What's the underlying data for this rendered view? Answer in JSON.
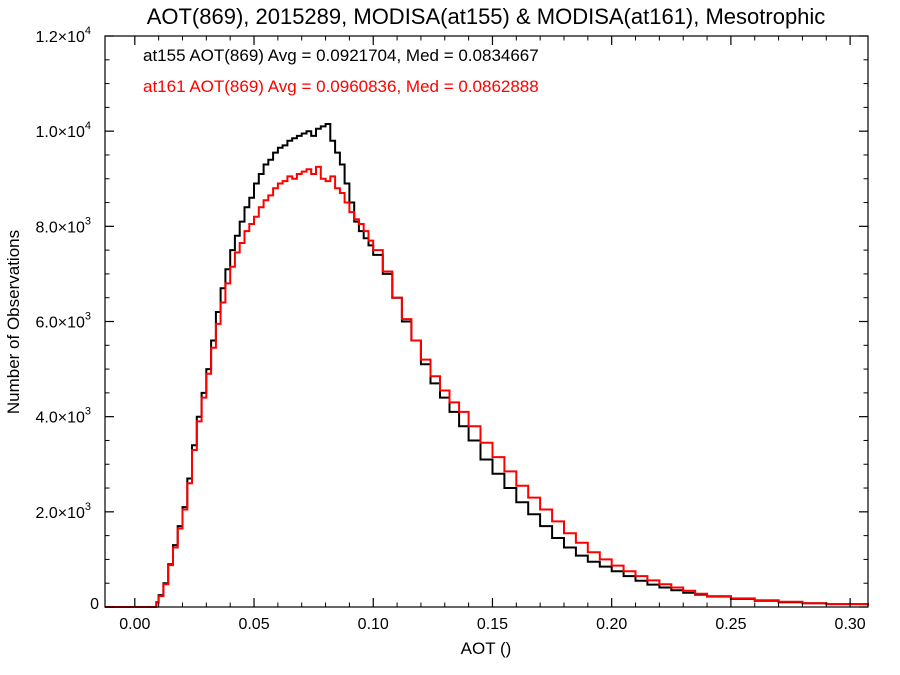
{
  "chart_data": {
    "type": "line",
    "style": "step-histogram",
    "title": "AOT(869), 2015289, MODISA(at155) & MODISA(at161), Mesotrophic",
    "xlabel": "AOT ()",
    "ylabel": "Number of Observations",
    "xlim": [
      -0.0125,
      0.3075
    ],
    "ylim": [
      0,
      12000
    ],
    "x_ticks": [
      {
        "value": 0.0,
        "label": "0.00"
      },
      {
        "value": 0.05,
        "label": "0.05"
      },
      {
        "value": 0.1,
        "label": "0.10"
      },
      {
        "value": 0.15,
        "label": "0.15"
      },
      {
        "value": 0.2,
        "label": "0.20"
      },
      {
        "value": 0.25,
        "label": "0.25"
      },
      {
        "value": 0.3,
        "label": "0.30"
      }
    ],
    "y_ticks": [
      {
        "value": 0,
        "mantissa": "0",
        "exponent": ""
      },
      {
        "value": 2000,
        "mantissa": "2.0×10",
        "exponent": "3"
      },
      {
        "value": 4000,
        "mantissa": "4.0×10",
        "exponent": "3"
      },
      {
        "value": 6000,
        "mantissa": "6.0×10",
        "exponent": "3"
      },
      {
        "value": 8000,
        "mantissa": "8.0×10",
        "exponent": "3"
      },
      {
        "value": 10000,
        "mantissa": "1.0×10",
        "exponent": "4"
      },
      {
        "value": 12000,
        "mantissa": "1.2×10",
        "exponent": "4"
      }
    ],
    "grid": false,
    "legend_placement": "top-left",
    "series": [
      {
        "name": "at155",
        "label": "at155 AOT(869) Avg = 0.0921704, Med = 0.0834667",
        "color": "#000000",
        "x": [
          -0.0125,
          0.0,
          0.005,
          0.007,
          0.009,
          0.01,
          0.012,
          0.014,
          0.016,
          0.018,
          0.02,
          0.022,
          0.024,
          0.026,
          0.028,
          0.03,
          0.032,
          0.034,
          0.036,
          0.038,
          0.04,
          0.042,
          0.044,
          0.046,
          0.048,
          0.05,
          0.052,
          0.054,
          0.056,
          0.058,
          0.06,
          0.062,
          0.064,
          0.066,
          0.068,
          0.07,
          0.072,
          0.074,
          0.076,
          0.078,
          0.08,
          0.082,
          0.084,
          0.086,
          0.088,
          0.09,
          0.092,
          0.094,
          0.096,
          0.098,
          0.1,
          0.104,
          0.108,
          0.112,
          0.116,
          0.12,
          0.124,
          0.128,
          0.132,
          0.136,
          0.14,
          0.145,
          0.15,
          0.155,
          0.16,
          0.165,
          0.17,
          0.175,
          0.18,
          0.185,
          0.19,
          0.195,
          0.2,
          0.205,
          0.21,
          0.215,
          0.22,
          0.225,
          0.23,
          0.235,
          0.24,
          0.25,
          0.26,
          0.27,
          0.28,
          0.29,
          0.3075
        ],
        "y": [
          0,
          0,
          0,
          0,
          100,
          250,
          500,
          900,
          1300,
          1700,
          2100,
          2700,
          3400,
          4000,
          4500,
          5000,
          5600,
          6200,
          6700,
          7100,
          7500,
          7800,
          8100,
          8400,
          8600,
          8900,
          9100,
          9300,
          9400,
          9550,
          9650,
          9700,
          9800,
          9850,
          9900,
          9950,
          10000,
          9900,
          10050,
          10100,
          10150,
          9800,
          9550,
          9300,
          8900,
          8500,
          8100,
          7900,
          7750,
          7600,
          7400,
          7000,
          6500,
          6000,
          5600,
          5100,
          4700,
          4400,
          4100,
          3800,
          3500,
          3100,
          2800,
          2500,
          2200,
          1950,
          1700,
          1450,
          1250,
          1080,
          950,
          850,
          750,
          650,
          550,
          470,
          410,
          350,
          300,
          260,
          220,
          170,
          130,
          100,
          80,
          60,
          30
        ]
      },
      {
        "name": "at161",
        "label": "at161 AOT(869) Avg = 0.0960836, Med = 0.0862888",
        "color": "#ff0000",
        "x": [
          -0.0125,
          0.0,
          0.005,
          0.007,
          0.009,
          0.01,
          0.012,
          0.014,
          0.016,
          0.018,
          0.02,
          0.022,
          0.024,
          0.026,
          0.028,
          0.03,
          0.032,
          0.034,
          0.036,
          0.038,
          0.04,
          0.042,
          0.044,
          0.046,
          0.048,
          0.05,
          0.052,
          0.054,
          0.056,
          0.058,
          0.06,
          0.062,
          0.064,
          0.066,
          0.068,
          0.07,
          0.072,
          0.074,
          0.076,
          0.078,
          0.08,
          0.082,
          0.084,
          0.086,
          0.088,
          0.09,
          0.092,
          0.094,
          0.096,
          0.098,
          0.1,
          0.104,
          0.108,
          0.112,
          0.116,
          0.12,
          0.124,
          0.128,
          0.132,
          0.136,
          0.14,
          0.145,
          0.15,
          0.155,
          0.16,
          0.165,
          0.17,
          0.175,
          0.18,
          0.185,
          0.19,
          0.195,
          0.2,
          0.205,
          0.21,
          0.215,
          0.22,
          0.225,
          0.23,
          0.235,
          0.24,
          0.25,
          0.26,
          0.27,
          0.28,
          0.29,
          0.3075
        ],
        "y": [
          0,
          0,
          0,
          0,
          90,
          230,
          480,
          880,
          1250,
          1650,
          2050,
          2600,
          3300,
          3900,
          4400,
          4900,
          5450,
          5950,
          6400,
          6800,
          7150,
          7450,
          7650,
          7900,
          8050,
          8200,
          8400,
          8550,
          8650,
          8800,
          8900,
          8950,
          9050,
          9000,
          9100,
          9150,
          9200,
          9100,
          9250,
          9000,
          8950,
          9050,
          8800,
          8700,
          8500,
          8300,
          8150,
          8050,
          7900,
          7700,
          7500,
          7050,
          6500,
          6050,
          5600,
          5200,
          4850,
          4550,
          4300,
          4100,
          3800,
          3450,
          3150,
          2850,
          2550,
          2300,
          2050,
          1800,
          1550,
          1350,
          1150,
          1000,
          870,
          750,
          650,
          560,
          480,
          410,
          340,
          280,
          230,
          180,
          140,
          110,
          80,
          60,
          30
        ]
      }
    ]
  }
}
